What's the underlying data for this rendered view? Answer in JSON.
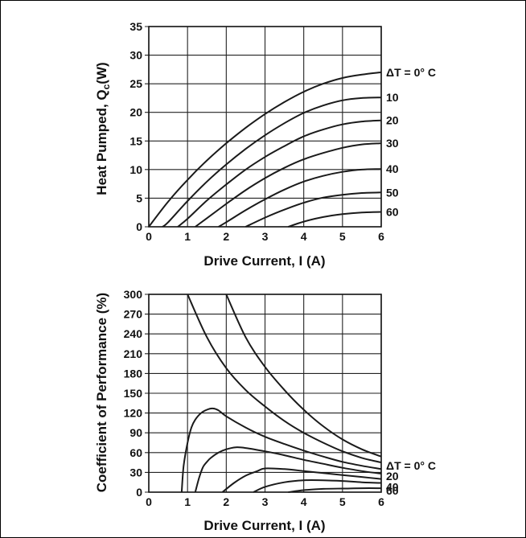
{
  "chart_data": [
    {
      "type": "line",
      "id": "qc",
      "title": "",
      "xlabel": "Drive Current, I (A)",
      "ylabel_main": "Heat Pumped, Q",
      "ylabel_sub": "c",
      "ylabel_unit": "(W)",
      "xlim": [
        0,
        6
      ],
      "ylim": [
        0,
        35
      ],
      "xticks": [
        "0",
        "1",
        "2",
        "3",
        "4",
        "5",
        "6"
      ],
      "yticks": [
        "0",
        "5",
        "10",
        "15",
        "20",
        "25",
        "30",
        "35"
      ],
      "grid": true,
      "series": [
        {
          "name": "ΔT = 0° C",
          "x": [
            0,
            0.5,
            1,
            1.5,
            2,
            2.5,
            3,
            3.5,
            4,
            4.5,
            5,
            5.5,
            6
          ],
          "y": [
            0,
            4.4,
            8.2,
            11.6,
            14.6,
            17.3,
            19.7,
            21.8,
            23.6,
            25.0,
            26.0,
            26.6,
            27.0
          ]
        },
        {
          "name": "10",
          "x": [
            0.35,
            0.5,
            1,
            1.5,
            2,
            2.5,
            3,
            3.5,
            4,
            4.5,
            5,
            5.5,
            6
          ],
          "y": [
            0,
            0.8,
            4.5,
            7.9,
            10.9,
            13.6,
            16.0,
            18.1,
            19.9,
            21.2,
            22.1,
            22.5,
            22.6
          ]
        },
        {
          "name": "20",
          "x": [
            0.75,
            1,
            1.5,
            2,
            2.5,
            3,
            3.5,
            4,
            4.5,
            5,
            5.5,
            6
          ],
          "y": [
            0,
            1.4,
            4.6,
            7.4,
            10.0,
            12.2,
            14.1,
            15.8,
            17.0,
            17.9,
            18.4,
            18.6
          ]
        },
        {
          "name": "30",
          "x": [
            1.2,
            1.5,
            2,
            2.5,
            3,
            3.5,
            4,
            4.5,
            5,
            5.5,
            6
          ],
          "y": [
            0,
            1.5,
            4.0,
            6.4,
            8.5,
            10.3,
            11.8,
            12.9,
            13.8,
            14.4,
            14.6
          ]
        },
        {
          "name": "40",
          "x": [
            1.8,
            2,
            2.5,
            3,
            3.5,
            4,
            4.5,
            5,
            5.5,
            6
          ],
          "y": [
            0,
            0.8,
            2.9,
            4.8,
            6.5,
            7.9,
            8.9,
            9.6,
            10.0,
            10.1
          ]
        },
        {
          "name": "50",
          "x": [
            2.5,
            3,
            3.5,
            4,
            4.5,
            5,
            5.5,
            6
          ],
          "y": [
            0,
            1.6,
            3.0,
            4.2,
            5.1,
            5.6,
            5.9,
            6.0
          ]
        },
        {
          "name": "60",
          "x": [
            3.6,
            4,
            4.5,
            5,
            5.5,
            6
          ],
          "y": [
            0,
            0.9,
            1.7,
            2.2,
            2.5,
            2.6
          ]
        }
      ]
    },
    {
      "type": "line",
      "id": "cop",
      "title": "",
      "xlabel": "Drive Current, I (A)",
      "ylabel": "Coefficient of Performance (%)",
      "xlim": [
        0,
        6
      ],
      "ylim": [
        0,
        300
      ],
      "xticks": [
        "0",
        "1",
        "2",
        "3",
        "4",
        "5",
        "6"
      ],
      "yticks": [
        "0",
        "30",
        "60",
        "90",
        "120",
        "150",
        "180",
        "210",
        "240",
        "270",
        "300"
      ],
      "grid": true,
      "series": [
        {
          "name": "",
          "x": [
            2.0,
            2.5,
            3,
            3.5,
            4,
            4.5,
            5,
            5.5,
            6
          ],
          "y": [
            300,
            235,
            190,
            155,
            125,
            100,
            80,
            65,
            54
          ]
        },
        {
          "name": "ΔT = 0° C",
          "x": [
            1.0,
            1.5,
            2,
            2.5,
            3,
            3.5,
            4,
            4.5,
            5,
            5.5,
            6
          ],
          "y": [
            300,
            235,
            188,
            155,
            130,
            108,
            90,
            75,
            62,
            52,
            45
          ]
        },
        {
          "name": "",
          "x": [
            0.85,
            0.9,
            1.0,
            1.1,
            1.2,
            1.35,
            1.5,
            1.65,
            1.8,
            2.0,
            2.5,
            3,
            3.5,
            4,
            4.5,
            5,
            5.5,
            6
          ],
          "y": [
            0,
            40,
            75,
            98,
            110,
            120,
            125,
            127,
            124,
            115,
            98,
            84,
            73,
            63,
            54,
            46,
            40,
            35
          ]
        },
        {
          "name": "20",
          "x": [
            1.2,
            1.3,
            1.4,
            1.5,
            1.6,
            1.8,
            2.0,
            2.25,
            2.5,
            3,
            3.5,
            4,
            4.5,
            5,
            5.5,
            6
          ],
          "y": [
            0,
            22,
            38,
            46,
            52,
            60,
            65,
            68,
            67,
            62,
            56,
            49,
            43,
            37,
            32,
            28
          ]
        },
        {
          "name": "40",
          "x": [
            1.9,
            2.2,
            2.5,
            2.8,
            3.0,
            3.5,
            4,
            4.5,
            5,
            5.5,
            6
          ],
          "y": [
            0,
            14,
            25,
            32,
            36,
            35,
            32,
            29,
            26,
            23,
            20
          ]
        },
        {
          "name": "",
          "x": [
            2.7,
            3.0,
            3.5,
            4.0,
            4.5,
            5.0,
            5.5,
            6.0
          ],
          "y": [
            0,
            8,
            15,
            18,
            18,
            17,
            15,
            14
          ]
        },
        {
          "name": "60",
          "x": [
            3.6,
            4.0,
            4.5,
            5.0,
            5.5,
            6.0
          ],
          "y": [
            0,
            3,
            5,
            5.5,
            6,
            6
          ]
        }
      ]
    }
  ]
}
